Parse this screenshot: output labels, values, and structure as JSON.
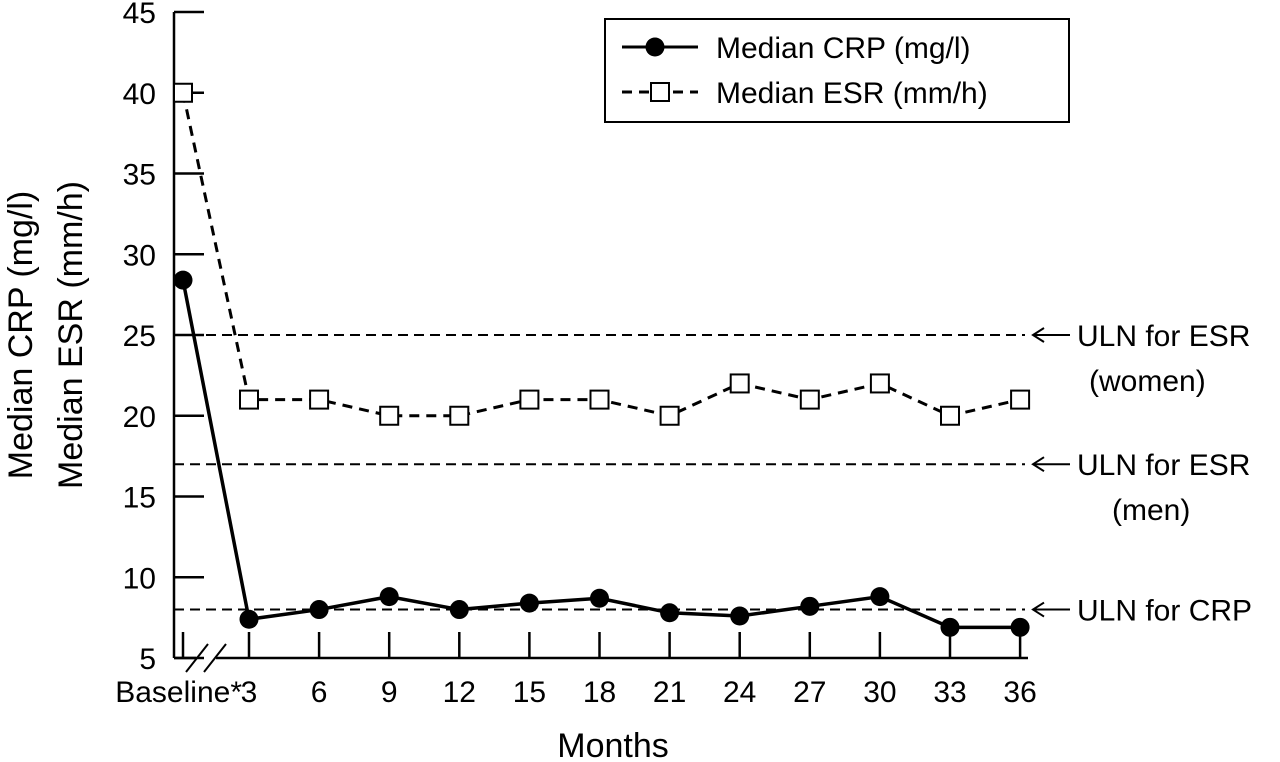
{
  "chart_data": {
    "type": "line",
    "title": "",
    "xlabel": "Months",
    "ylabel_lines": [
      "Median CRP (mg/l)",
      "Median ESR (mm/h)"
    ],
    "ylim": [
      5,
      45
    ],
    "yticks": [
      5,
      10,
      15,
      20,
      25,
      30,
      35,
      40,
      45
    ],
    "categories": [
      "Baseline*",
      "3",
      "6",
      "9",
      "12",
      "15",
      "18",
      "21",
      "24",
      "27",
      "30",
      "33",
      "36"
    ],
    "axis_break": "between Baseline* and 3",
    "series": [
      {
        "name": "Median CRP (mg/l)",
        "marker": "filled-circle",
        "line": "solid",
        "values": [
          28.4,
          7.4,
          8.0,
          8.8,
          8.0,
          8.4,
          8.7,
          7.8,
          7.6,
          8.2,
          8.8,
          6.9,
          6.9
        ]
      },
      {
        "name": "Median ESR (mm/h)",
        "marker": "open-square",
        "line": "dashed",
        "values": [
          40,
          21,
          21,
          20,
          20,
          21,
          21,
          20,
          22,
          21,
          22,
          20,
          21
        ]
      }
    ],
    "reference_lines": [
      {
        "value": 25,
        "label_lines": [
          "ULN for ESR",
          "(women)"
        ]
      },
      {
        "value": 17,
        "label_lines": [
          "ULN for ESR",
          "(men)"
        ]
      },
      {
        "value": 8,
        "label_lines": [
          "ULN for CRP"
        ]
      }
    ],
    "legend_position": "top-right",
    "grid": false
  }
}
